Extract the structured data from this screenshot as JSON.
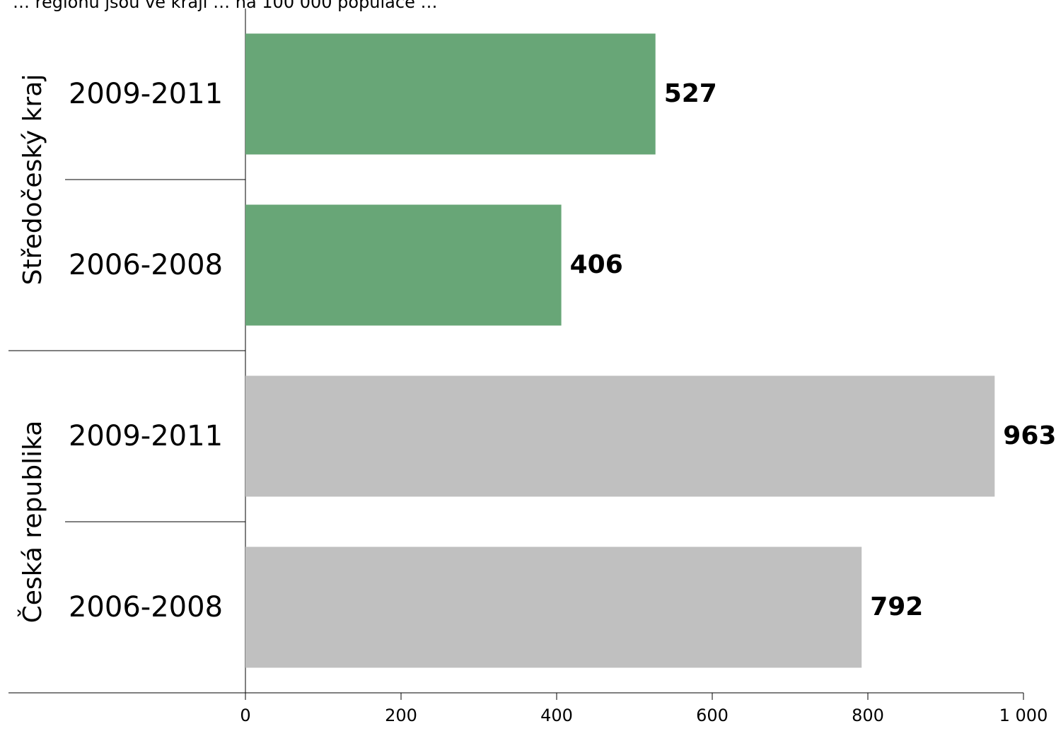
{
  "chart_data": {
    "type": "bar",
    "orientation": "horizontal",
    "top_text": "… regionu jsou ve kraji … na 100 000 populace …",
    "groups": [
      {
        "name": "Středočeský kraj",
        "color": "#68a677",
        "categories": [
          "2009-2011",
          "2006-2008"
        ],
        "values": [
          527,
          406
        ]
      },
      {
        "name": "Česká republika",
        "color": "#c0c0c0",
        "categories": [
          "2009-2011",
          "2006-2008"
        ],
        "values": [
          963,
          792
        ]
      }
    ],
    "xlim": [
      0,
      1000
    ],
    "xticks": [
      0,
      200,
      400,
      600,
      800,
      1000
    ],
    "xtick_labels": [
      "0",
      "200",
      "400",
      "600",
      "800",
      "1 000"
    ],
    "grid": false,
    "legend": "none"
  }
}
